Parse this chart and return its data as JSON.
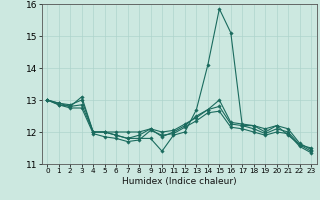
{
  "xlabel": "Humidex (Indice chaleur)",
  "xlim": [
    -0.5,
    23.5
  ],
  "ylim": [
    11,
    16
  ],
  "xticks": [
    0,
    1,
    2,
    3,
    4,
    5,
    6,
    7,
    8,
    9,
    10,
    11,
    12,
    13,
    14,
    15,
    16,
    17,
    18,
    19,
    20,
    21,
    22,
    23
  ],
  "yticks": [
    11,
    12,
    13,
    14,
    15,
    16
  ],
  "bg_color": "#cce8e0",
  "line_color": "#1a6b5e",
  "grid_color": "#aed4cc",
  "lines": [
    [
      13.0,
      12.9,
      12.8,
      13.1,
      12.0,
      12.0,
      11.9,
      11.8,
      11.8,
      11.8,
      11.4,
      11.9,
      12.0,
      12.7,
      14.1,
      15.85,
      15.1,
      12.2,
      12.2,
      12.1,
      12.2,
      11.9,
      11.6,
      11.5
    ],
    [
      13.0,
      12.9,
      12.85,
      13.0,
      12.0,
      12.0,
      12.0,
      12.0,
      12.0,
      12.1,
      11.85,
      12.0,
      12.2,
      12.5,
      12.7,
      13.0,
      12.3,
      12.25,
      12.2,
      12.0,
      12.2,
      12.1,
      11.65,
      11.45
    ],
    [
      13.0,
      12.85,
      12.8,
      12.85,
      12.0,
      12.0,
      11.9,
      11.8,
      11.9,
      12.1,
      12.0,
      12.05,
      12.25,
      12.45,
      12.7,
      12.8,
      12.25,
      12.2,
      12.1,
      11.95,
      12.1,
      12.0,
      11.6,
      11.4
    ],
    [
      13.0,
      12.85,
      12.75,
      12.75,
      11.95,
      11.85,
      11.8,
      11.7,
      11.75,
      12.05,
      11.9,
      11.95,
      12.15,
      12.35,
      12.6,
      12.65,
      12.15,
      12.1,
      12.0,
      11.9,
      12.0,
      11.95,
      11.55,
      11.35
    ]
  ]
}
